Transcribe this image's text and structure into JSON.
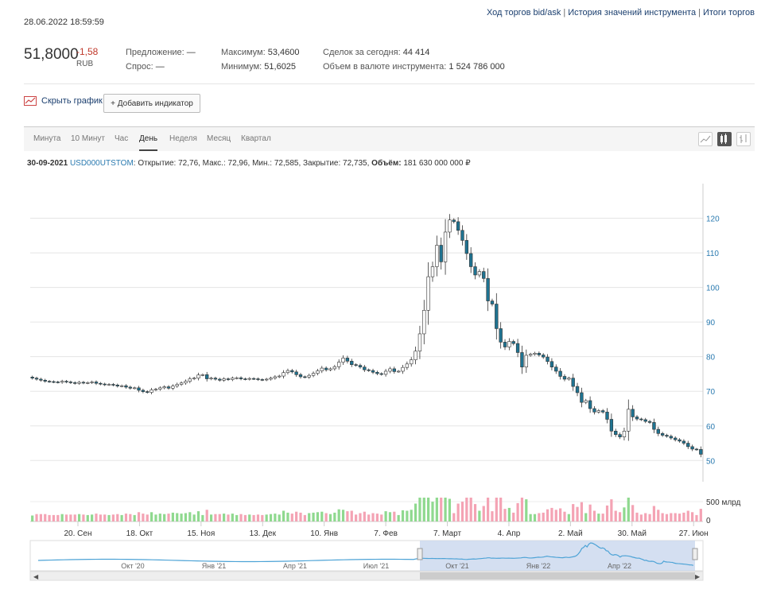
{
  "header": {
    "timestamp": "28.06.2022 18:59:59",
    "links": [
      "Ход торгов bid/ask",
      "История значений инструмента",
      "Итоги торгов"
    ]
  },
  "quote": {
    "price": "51,8000",
    "change": "-1,58",
    "currency": "RUB",
    "offer_label": "Предложение:",
    "offer_value": "—",
    "bid_label": "Спрос:",
    "bid_value": "—",
    "max_label": "Максимум:",
    "max_value": "53,4600",
    "min_label": "Минимум:",
    "min_value": "51,6025",
    "deals_label": "Сделок за сегодня:",
    "deals_value": "44 414",
    "volume_label": "Объем в валюте инструмента:",
    "volume_value": "1 524 786 000"
  },
  "toolbar": {
    "hide_chart": "Скрыть график",
    "add_indicator": "+ Добавить индикатор"
  },
  "tabs": [
    "Минута",
    "10 Минут",
    "Час",
    "День",
    "Неделя",
    "Месяц",
    "Квартал"
  ],
  "active_tab": "День",
  "info": {
    "date": "30-09-2021",
    "ticker": "USD000UTSTOM",
    "rest": ": Открытие: 72,76, Макс.: 72,96, Мин.: 72,585, Закрытие: 72,735, ",
    "vol_label": "Объём:",
    "vol_value": "181 630 000 000 ₽"
  },
  "colors": {
    "up_fill": "#ffffff",
    "down_fill": "#1f7391",
    "volume_up": "#8fd98f",
    "volume_down": "#f4a3b4",
    "axis_text": "#2a7ab0",
    "navigator_fill": "#c9d7ee",
    "navigator_line": "#4da3d6"
  },
  "chart_data": {
    "type": "candlestick",
    "y_axis": {
      "ticks": [
        50,
        60,
        70,
        80,
        90,
        100,
        110,
        120
      ],
      "ylim": [
        48,
        130
      ],
      "side": "right"
    },
    "volume_axis": {
      "ticks": [
        "500 млрд",
        "0"
      ]
    },
    "x_ticks": [
      "20. Сен",
      "18. Окт",
      "15. Ноя",
      "13. Дек",
      "10. Янв",
      "7. Фев",
      "7. Март",
      "4. Апр",
      "2. Май",
      "30. Май",
      "27. Июн"
    ],
    "navigator_ticks": [
      "Окт '20",
      "Янв '21",
      "Апр '21",
      "Июл '21",
      "Окт '21",
      "Янв '22",
      "Апр '22"
    ],
    "close_series": [
      73.8,
      73.5,
      73.2,
      72.9,
      72.8,
      72.7,
      72.6,
      72.9,
      72.7,
      72.5,
      72.3,
      72.6,
      72.4,
      72.5,
      72.7,
      72.3,
      72.1,
      71.9,
      72.0,
      71.8,
      71.5,
      71.6,
      71.2,
      70.9,
      71.0,
      70.3,
      69.9,
      69.7,
      70.4,
      70.6,
      71.0,
      71.3,
      70.9,
      71.5,
      72.0,
      72.4,
      72.9,
      73.6,
      73.8,
      74.7,
      74.8,
      73.6,
      73.8,
      73.5,
      73.2,
      73.6,
      73.4,
      73.8,
      73.9,
      73.6,
      73.5,
      73.7,
      73.6,
      73.4,
      73.3,
      73.5,
      73.8,
      74.2,
      74.4,
      75.4,
      76.0,
      75.6,
      74.8,
      74.2,
      74.1,
      74.6,
      75.2,
      75.9,
      76.7,
      76.2,
      76.5,
      77.1,
      78.4,
      79.6,
      78.7,
      77.7,
      77.5,
      77.0,
      76.2,
      76.0,
      75.5,
      75.1,
      74.9,
      75.8,
      76.5,
      75.7,
      75.8,
      76.9,
      77.9,
      79.1,
      81.6,
      86.6,
      93.4,
      103.1,
      106.0,
      112.2,
      107.4,
      116.0,
      119.5,
      119.0,
      116.5,
      113.6,
      109.8,
      106.0,
      103.6,
      104.6,
      102.6,
      96.1,
      95.2,
      88.1,
      84.2,
      82.8,
      84.4,
      83.8,
      81.2,
      77.0,
      80.4,
      80.7,
      81.0,
      80.5,
      79.9,
      78.6,
      77.0,
      75.8,
      74.3,
      73.5,
      73.8,
      71.4,
      69.6,
      66.8,
      67.3,
      65.0,
      64.0,
      64.4,
      64.0,
      61.9,
      58.5,
      57.5,
      56.8,
      58.5,
      64.8,
      62.6,
      62.0,
      61.8,
      61.3,
      61.0,
      59.0,
      57.8,
      57.3,
      57.0,
      56.5,
      56.0,
      55.6,
      55.0,
      54.0,
      53.3,
      53.2,
      51.8
    ],
    "series": [
      {
        "name": "USD000UTSTOM"
      }
    ]
  }
}
